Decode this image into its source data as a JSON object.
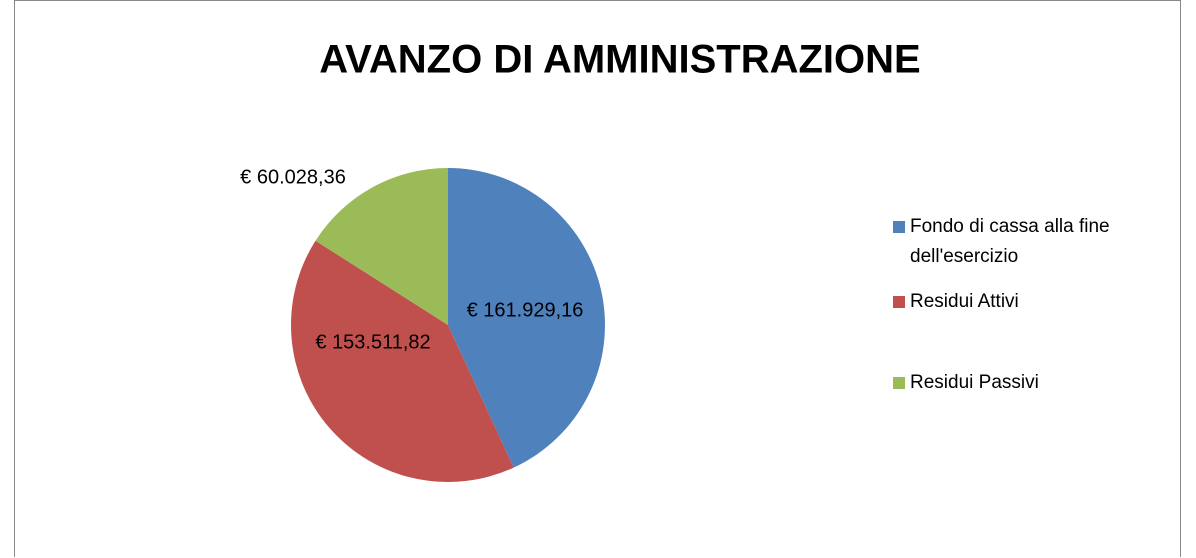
{
  "chart_data": {
    "type": "pie",
    "title": "AVANZO DI AMMINISTRAZIONE",
    "categories": [
      "Fondo di cassa alla fine dell'esercizio",
      "Residui Attivi",
      "Residui Passivi"
    ],
    "values": [
      161929.16,
      153511.82,
      60028.36
    ],
    "value_labels": [
      "€ 161.929,16",
      "€ 153.511,82",
      "€ 60.028,36"
    ],
    "colors": [
      "#4f81bd",
      "#c0504d",
      "#9bbb59"
    ],
    "legend": "right"
  }
}
